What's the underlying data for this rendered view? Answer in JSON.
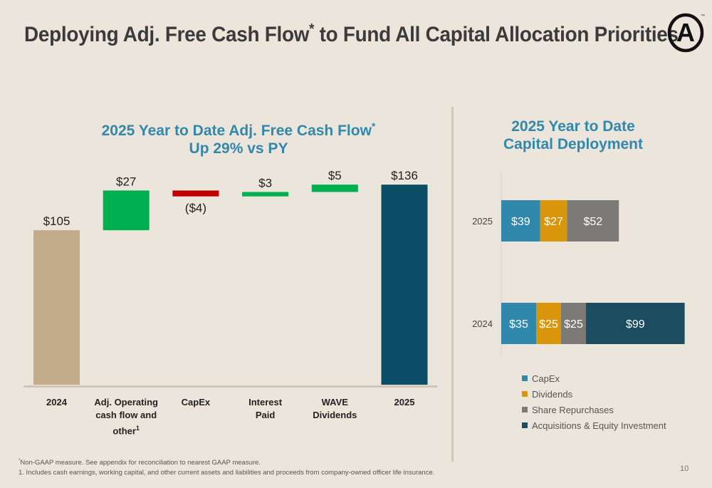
{
  "slide": {
    "title_main": "Deploying Adj. Free Cash Flow",
    "title_mark": "*",
    "title_rest": " to Fund All Capital Allocation Priorities",
    "logo_letter": "A",
    "logo_tm": "™",
    "page_number": "10"
  },
  "footnotes": {
    "mark": "*",
    "line1": "Non-GAAP measure. See appendix for reconciliation to nearest GAAP measure.",
    "line2": "1.  Includes cash earnings, working capital, and other current assets and liabilities and proceeds from company-owned officer life insurance."
  },
  "colors": {
    "start": "#c3ac89",
    "increase": "#00b050",
    "decrease": "#c00000",
    "end": "#0b4d66",
    "capex": "#3188ad",
    "dividends": "#d9960b",
    "repurchases": "#7b7a76",
    "acquisitions": "#1b4c60"
  },
  "chart_data": [
    {
      "type": "waterfall",
      "title_line1": "2025 Year to Date Adj. Free Cash Flow",
      "title_mark": "*",
      "title_line2": "Up 29% vs PY",
      "ylim": [
        0,
        150
      ],
      "steps": [
        {
          "kind": "start",
          "category_lines": [
            "2024"
          ],
          "value": 105,
          "label": "$105"
        },
        {
          "kind": "increase",
          "category_lines": [
            "Adj. Operating",
            "cash flow and",
            "other"
          ],
          "category_mark": "1",
          "value": 27,
          "label": "$27"
        },
        {
          "kind": "decrease",
          "category_lines": [
            "CapEx"
          ],
          "value": -4,
          "label": "($4)"
        },
        {
          "kind": "increase",
          "category_lines": [
            "Interest",
            "Paid"
          ],
          "value": 3,
          "label": "$3"
        },
        {
          "kind": "increase",
          "category_lines": [
            "WAVE",
            "Dividends"
          ],
          "value": 5,
          "label": "$5"
        },
        {
          "kind": "end",
          "category_lines": [
            "2025"
          ],
          "value": 136,
          "label": "$136"
        }
      ]
    },
    {
      "type": "stacked-bar-horizontal",
      "title_line1": "2025 Year to Date",
      "title_line2": "Capital Deployment",
      "categories": [
        "2025",
        "2024"
      ],
      "series": [
        {
          "name": "CapEx",
          "color_key": "capex",
          "values": [
            39,
            35
          ],
          "labels": [
            "$39",
            "$35"
          ]
        },
        {
          "name": "Dividends",
          "color_key": "dividends",
          "values": [
            27,
            25
          ],
          "labels": [
            "$27",
            "$25"
          ]
        },
        {
          "name": "Share Repurchases",
          "color_key": "repurchases",
          "values": [
            52,
            25
          ],
          "labels": [
            "$52",
            "$25"
          ]
        },
        {
          "name": "Acquisitions & Equity Investment",
          "color_key": "acquisitions",
          "values": [
            0,
            99
          ],
          "labels": [
            "",
            "$99"
          ]
        }
      ],
      "legend_position": "bottom"
    }
  ]
}
